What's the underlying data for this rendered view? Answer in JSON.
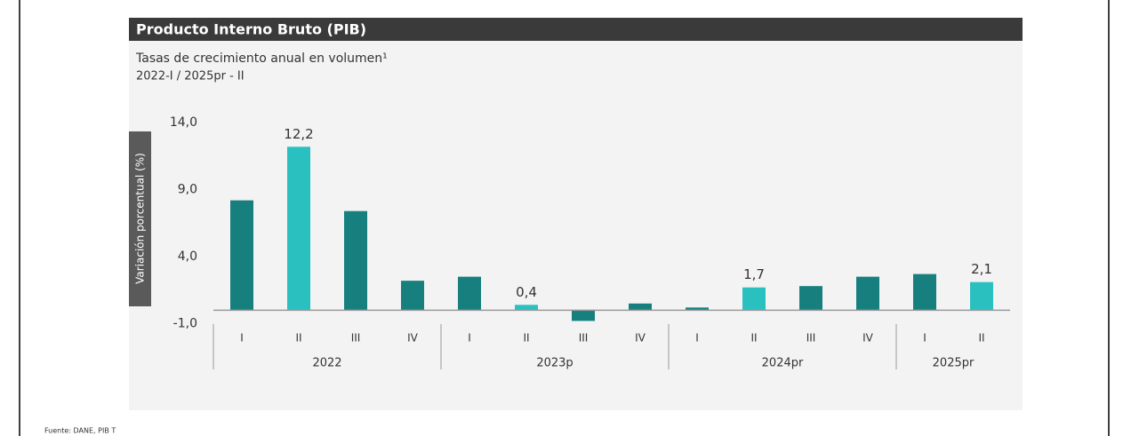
{
  "chart_data": {
    "type": "bar",
    "title": "Producto Interno Bruto (PIB)",
    "subtitle": "Tasas de crecimiento anual en volumen¹",
    "period": "2022-I / 2025pr - II",
    "y_label": "Variación porcentual (%)",
    "groups": [
      {
        "name": "2022",
        "categories": [
          "I",
          "II",
          "III",
          "IV"
        ]
      },
      {
        "name": "2023p",
        "categories": [
          "I",
          "II",
          "III",
          "IV"
        ]
      },
      {
        "name": "2024pr",
        "categories": [
          "I",
          "II",
          "III",
          "IV"
        ]
      },
      {
        "name": "2025pr",
        "categories": [
          "I",
          "II"
        ]
      }
    ],
    "values": [
      8.2,
      12.2,
      7.4,
      2.2,
      2.5,
      0.4,
      -0.8,
      0.5,
      0.2,
      1.7,
      1.8,
      2.5,
      2.7,
      2.1
    ],
    "value_labels": [
      null,
      "12,2",
      null,
      null,
      null,
      "0,4",
      null,
      null,
      null,
      "1,7",
      null,
      null,
      null,
      "2,1"
    ],
    "colors": [
      "#17807f",
      "#2bc0c0",
      "#17807f",
      "#17807f",
      "#17807f",
      "#2bc0c0",
      "#17807f",
      "#17807f",
      "#17807f",
      "#2bc0c0",
      "#17807f",
      "#17807f",
      "#17807f",
      "#2bc0c0"
    ],
    "ylim": [
      -1.9,
      15.2
    ],
    "yticks": [
      {
        "value": -1,
        "label": "-1,0"
      },
      {
        "value": 4,
        "label": "4,0"
      },
      {
        "value": 9,
        "label": "9,0"
      },
      {
        "value": 14,
        "label": "14,0"
      }
    ],
    "grid": false,
    "source": "Fuente: DANE, PIB T"
  }
}
